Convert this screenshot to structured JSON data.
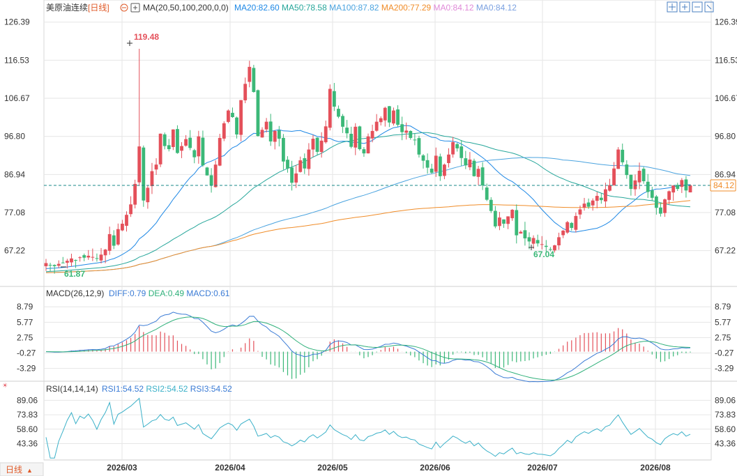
{
  "header": {
    "instrument": "美原油连续",
    "period": "[日线]",
    "ma_params": "MA(20,50,100,200,0,0)",
    "ma_values": [
      {
        "label": "MA20:82.60",
        "color": "#1e88e5"
      },
      {
        "label": "MA50:78.58",
        "color": "#26a69a"
      },
      {
        "label": "MA100:87.82",
        "color": "#4aa3df"
      },
      {
        "label": "MA200:77.29",
        "color": "#f08c28"
      },
      {
        "label": "MA0:84.12",
        "color": "#e08ad8"
      },
      {
        "label": "MA0:84.12",
        "color": "#7aa0e0"
      }
    ]
  },
  "toolbar": {
    "icons": [
      "crosshair-icon",
      "zoom-in-icon",
      "zoom-out-icon",
      "fullscreen-icon"
    ]
  },
  "current_price": "84.12",
  "colors": {
    "up": "#e4505a",
    "down": "#3bb878",
    "grid": "#e6e6e6",
    "dashed": "#1a8a8a"
  },
  "axes": {
    "price_ticks": [
      "126.39",
      "116.53",
      "106.67",
      "96.80",
      "86.94",
      "77.08",
      "67.22"
    ],
    "macd_ticks": [
      "8.79",
      "5.77",
      "2.75",
      "-0.27",
      "-3.29"
    ],
    "rsi_ticks": [
      "89.06",
      "73.83",
      "58.60",
      "43.36"
    ],
    "date_ticks": [
      "2026/03",
      "2026/04",
      "2026/05",
      "2026/06",
      "2026/07",
      "2026/08"
    ]
  },
  "annotations": {
    "high": "119.48",
    "low1": "61.87",
    "low2": "67.04"
  },
  "macd": {
    "title": "MACD(26,12,9)",
    "values": [
      {
        "label": "DIFF:0.79",
        "color": "#3a7bd5"
      },
      {
        "label": "DEA:0.49",
        "color": "#2fb07a"
      },
      {
        "label": "MACD:0.61",
        "color": "#3a7bd5"
      }
    ]
  },
  "rsi": {
    "title": "RSI(14,14,14)",
    "values": [
      {
        "label": "RSI1:54.52",
        "color": "#3a7bd5"
      },
      {
        "label": "RSI2:54.52",
        "color": "#3ab0c8"
      },
      {
        "label": "RSI3:54.52",
        "color": "#3a7bd5"
      }
    ]
  },
  "footer": {
    "period_tab": "日线"
  },
  "chart_data": {
    "type": "candlestick",
    "price_range": [
      61.0,
      127.5
    ],
    "date_labels": [
      "2026/03",
      "2026/04",
      "2026/05",
      "2026/06",
      "2026/07",
      "2026/08"
    ],
    "annotated_points": {
      "high": 119.48,
      "low_1": 61.87,
      "low_2": 67.04
    },
    "close_series": [
      64,
      63.5,
      63.2,
      63.8,
      64.1,
      64.6,
      65.2,
      64.8,
      65.5,
      65.4,
      65.9,
      65.6,
      65.1,
      66.2,
      67.5,
      71.5,
      68.5,
      72.8,
      74.2,
      76.5,
      79.2,
      84.5,
      94.2,
      80.2,
      83.5,
      87.8,
      89.5,
      97.5,
      94.3,
      93.5,
      98.6,
      92.5,
      94.3,
      96.1,
      93.8,
      91.4,
      96.8,
      89.3,
      86.7,
      84.1,
      89.5,
      96.4,
      100.2,
      103.5,
      101.8,
      97.3,
      106.2,
      110.4,
      114.8,
      108.3,
      96.9,
      98.5,
      100.6,
      95.5,
      98.2,
      96.2,
      90.3,
      88.5,
      84.8,
      87.2,
      90.6,
      88.5,
      93.4,
      96.2,
      92.8,
      95.7,
      99.4,
      109.1,
      104.5,
      101.9,
      99.3,
      97.6,
      94.1,
      99.3,
      93.5,
      92.4,
      96.8,
      98.2,
      100.6,
      101.5,
      104.2,
      100.4,
      103.5,
      99.8,
      97.9,
      98.3,
      96.4,
      95.8,
      92.1,
      90.5,
      88.7,
      87.4,
      91.8,
      86.5,
      89.5,
      92.1,
      95.3,
      93.7,
      91.2,
      89.3,
      90.8,
      86.5,
      88.4,
      84.1,
      80.4,
      77.5,
      73.5,
      75.8,
      74.2,
      76.1,
      77.8,
      71.2,
      72.1,
      70.4,
      69.6,
      70.5,
      69.1,
      68.9,
      68.2,
      67.5,
      68.6,
      70.7,
      72.4,
      74.6,
      73.1,
      76.2,
      77.9,
      79.4,
      78.6,
      80.2,
      81.4,
      80.3,
      83.1,
      84.2,
      88.5,
      93.4,
      90.1,
      86.8,
      83.2,
      85.4,
      87.9,
      85.2,
      82.4,
      80.9,
      78.3,
      76.8,
      80.5,
      82.6,
      84.1,
      83.2,
      85.5,
      82.8,
      84.12
    ]
  }
}
